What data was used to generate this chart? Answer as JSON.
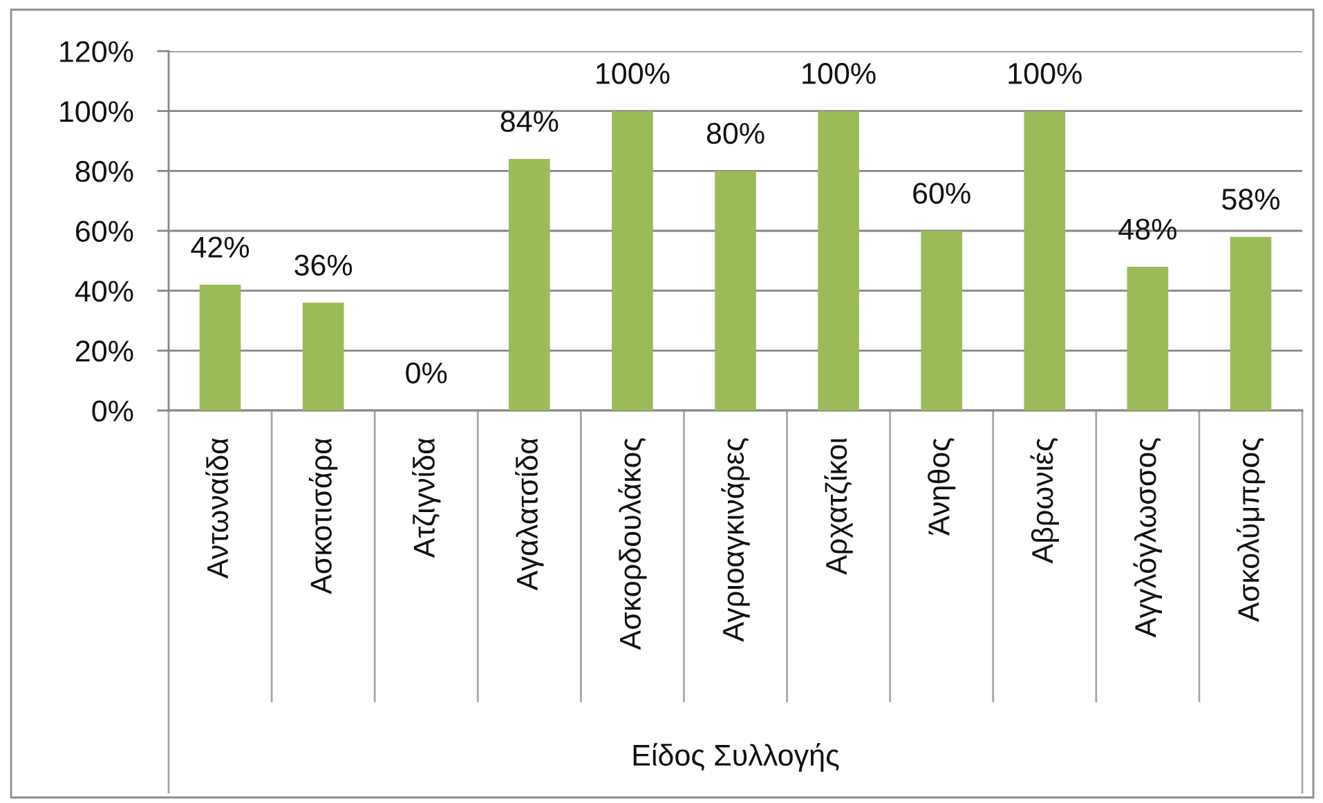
{
  "chart_data": {
    "type": "bar",
    "xlabel": "Είδος Συλλογής",
    "categories": [
      "Αντωναίδα",
      "Ασκοτισάρα",
      "Ατζιγνίδα",
      "Αγαλατσίδα",
      "Ασκορδουλάκος",
      "Αγριοαγκινάρες",
      "Αρχατζίκοι",
      "Άνηθος",
      "Αβρωνιές",
      "Αγγλόγλωσσος",
      "Ασκολύμπρος"
    ],
    "values": [
      42,
      36,
      0,
      84,
      100,
      80,
      100,
      60,
      100,
      48,
      58
    ],
    "value_labels": [
      "42%",
      "36%",
      "0%",
      "84%",
      "100%",
      "80%",
      "100%",
      "60%",
      "100%",
      "48%",
      "58%"
    ],
    "color": "#9bbb59",
    "ylim": [
      0,
      120
    ],
    "yticks": [
      {
        "value": 0,
        "label": "0%"
      },
      {
        "value": 20,
        "label": "20%"
      },
      {
        "value": 40,
        "label": "40%"
      },
      {
        "value": 60,
        "label": "60%"
      },
      {
        "value": 80,
        "label": "80%"
      },
      {
        "value": 100,
        "label": "100%"
      },
      {
        "value": 120,
        "label": "120%"
      }
    ],
    "grid": "y"
  }
}
